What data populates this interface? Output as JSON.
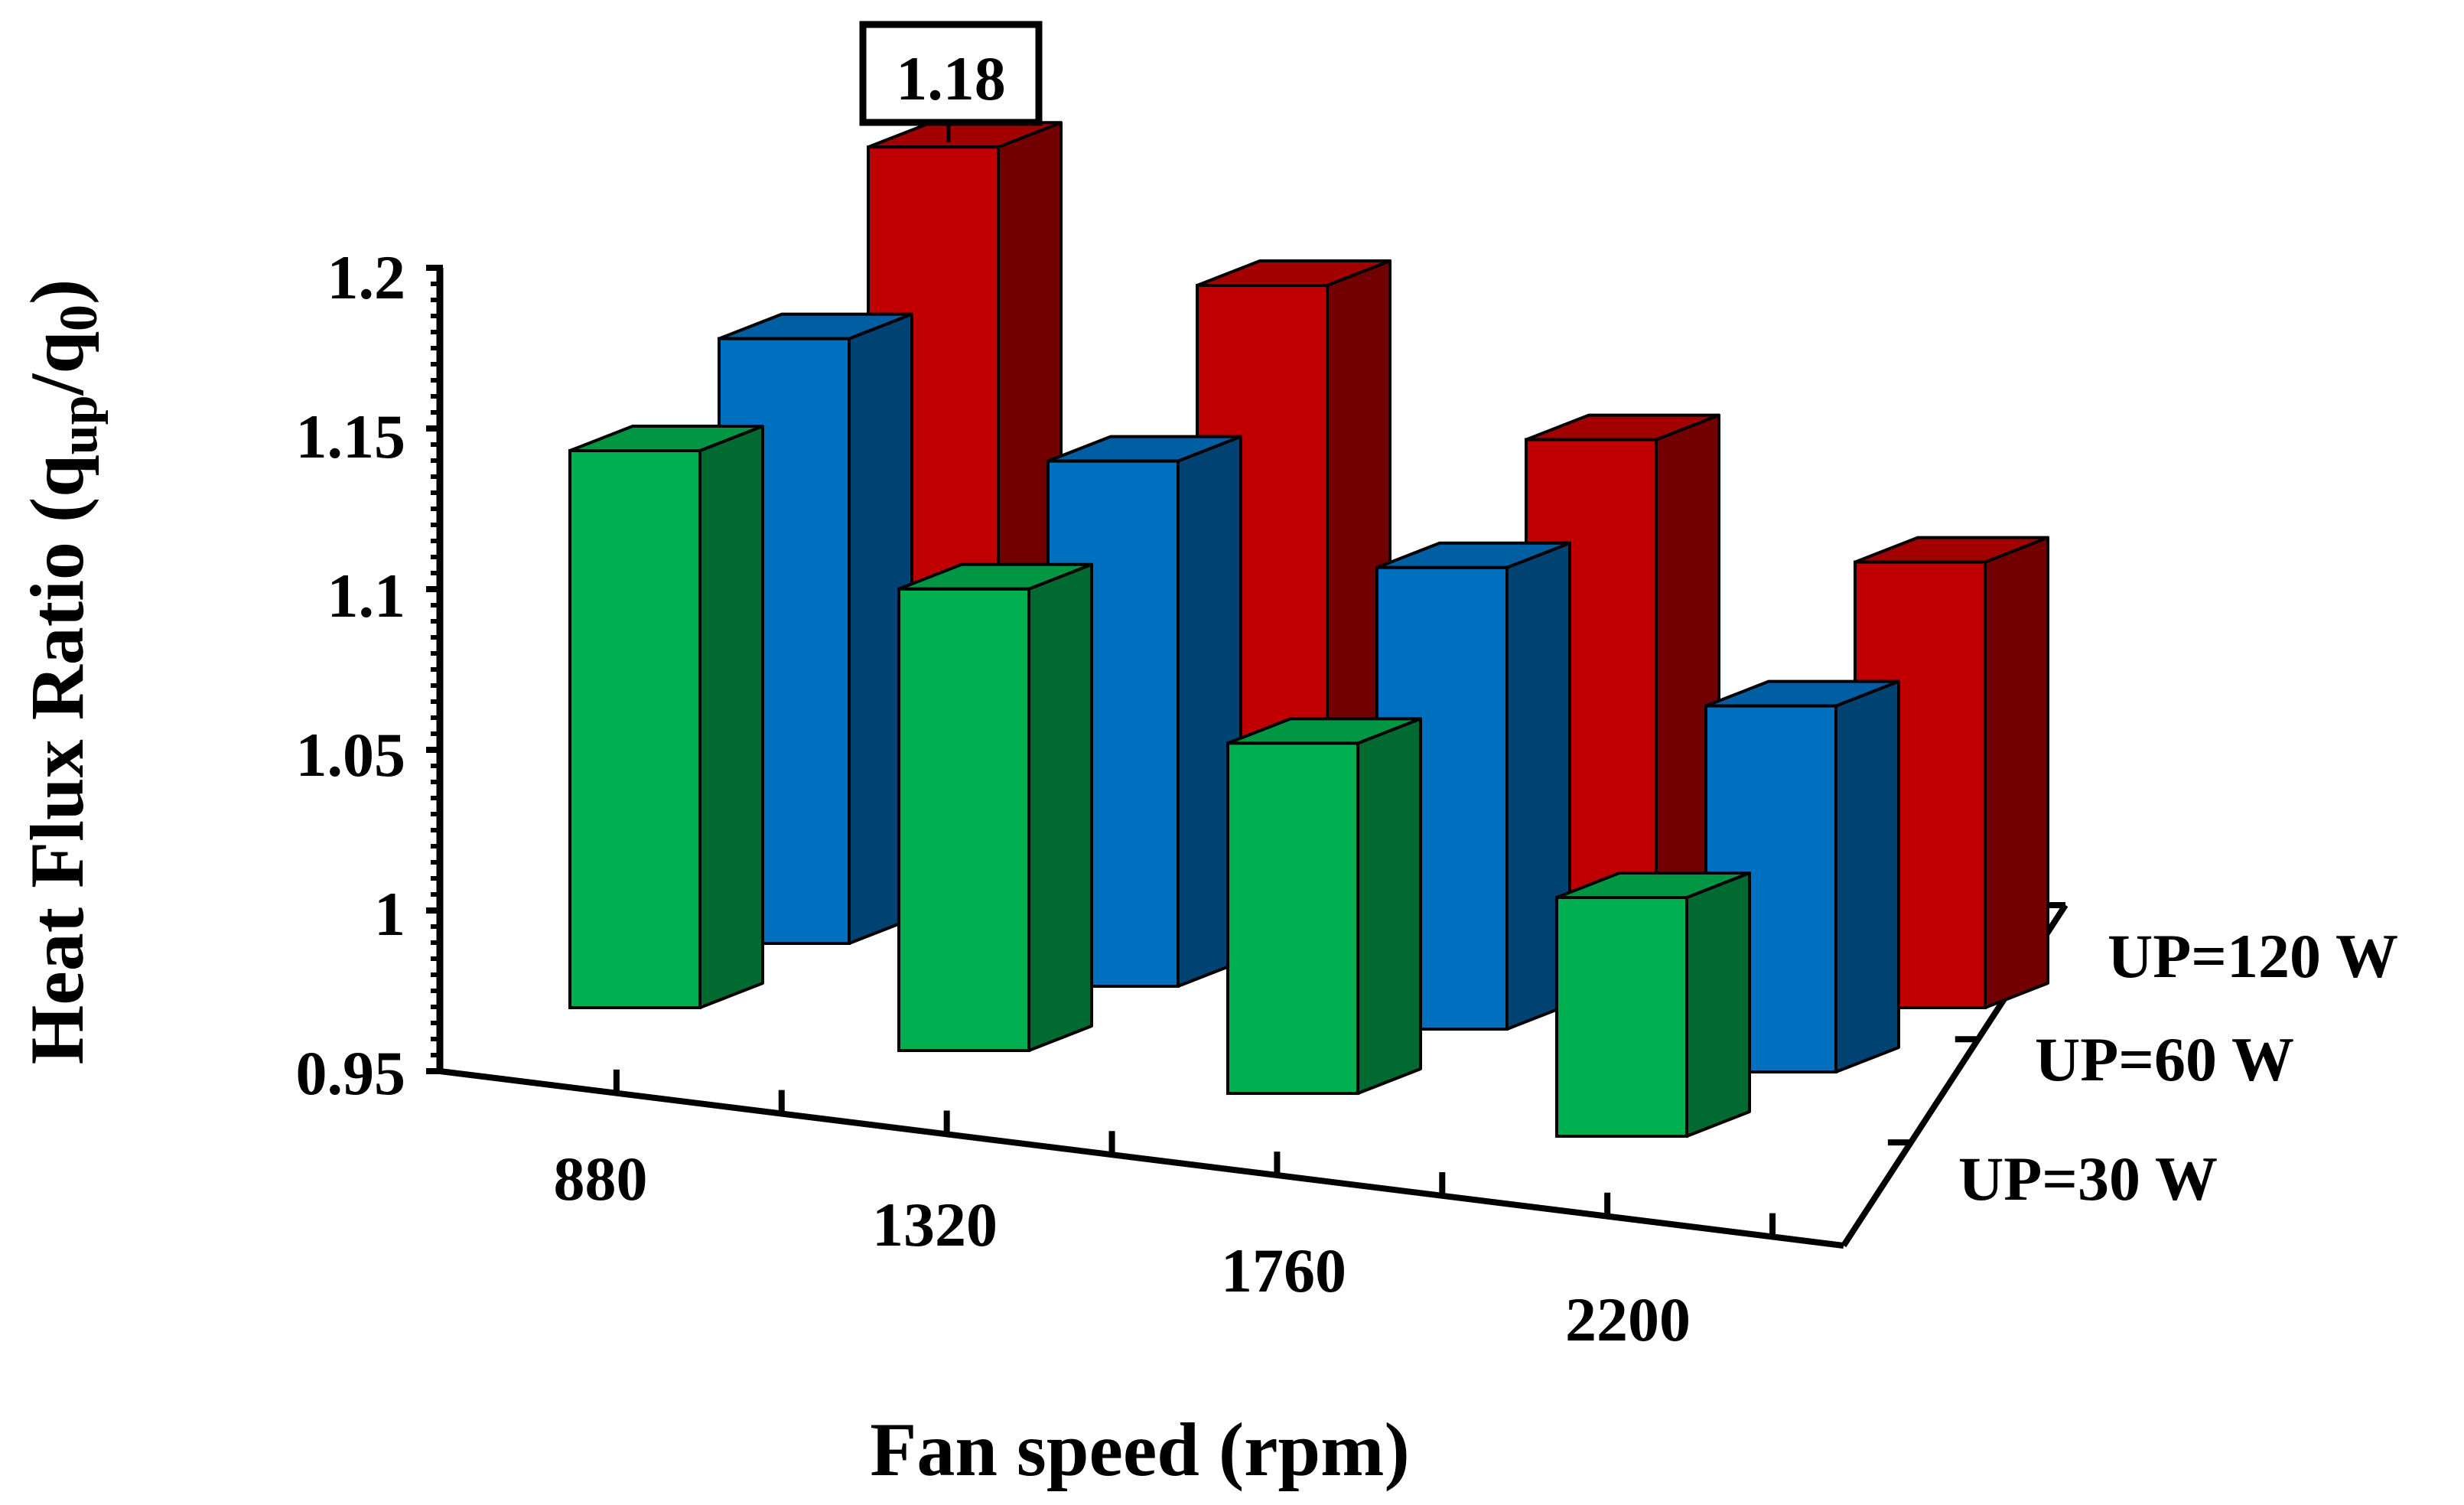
{
  "chart_data": {
    "type": "bar",
    "subtype": "3d-clustered-bar",
    "title": "",
    "xlabel": "Fan speed (rpm)",
    "ylabel": "Heat Flux Ratio (q",
    "ylabel_sub1": "up",
    "ylabel_mid": "/q",
    "ylabel_sub2": "0",
    "ylabel_end": ")",
    "ylim": [
      0.95,
      1.2
    ],
    "yticks": [
      "0.95",
      "1",
      "1.05",
      "1.1",
      "1.15",
      "1.2"
    ],
    "ytick_values": [
      0.95,
      1.0,
      1.05,
      1.1,
      1.15,
      1.2
    ],
    "categories": [
      "880",
      "1320",
      "1760",
      "2200"
    ],
    "series": [
      {
        "name": "UP=30 W",
        "color": "#00b050",
        "values": [
          1.125,
          1.095,
          1.06,
          1.025
        ]
      },
      {
        "name": "UP=60 W",
        "color": "#0070c0",
        "values": [
          1.14,
          1.115,
          1.095,
          1.065
        ]
      },
      {
        "name": "UP=120 W",
        "color": "#c00000",
        "values": [
          1.18,
          1.15,
          1.115,
          1.09
        ]
      }
    ],
    "annotations": [
      {
        "text": "1.18",
        "series": "UP=120 W",
        "category": "880"
      }
    ],
    "legend": "depth-axis-right"
  }
}
